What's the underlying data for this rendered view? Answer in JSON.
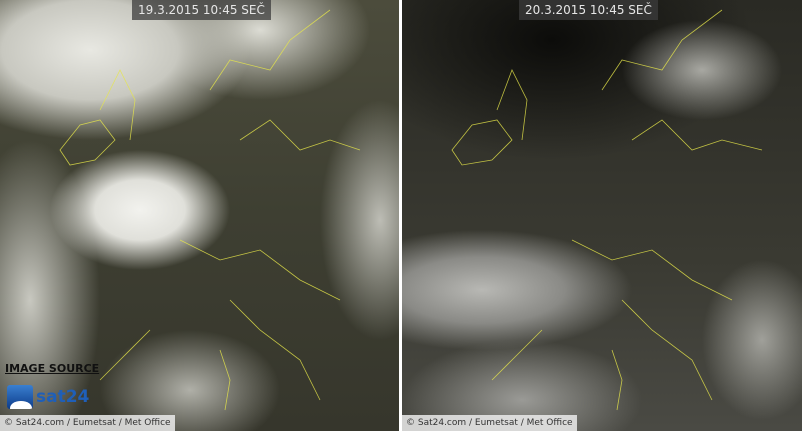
{
  "left_panel": {
    "timestamp": "19.3.2015 10:45 SEČ",
    "credit": "© Sat24.com / Eumetsat / Met Office"
  },
  "right_panel": {
    "timestamp": "20.3.2015 10:45 SEČ",
    "credit": "© Sat24.com / Eumetsat / Met Office"
  },
  "source": {
    "label": "IMAGE SOURCE",
    "logo_text": "sat24"
  },
  "colors": {
    "coastline": "#e6e64a",
    "divider": "#ffffff",
    "logo": "#1f5fb8"
  }
}
